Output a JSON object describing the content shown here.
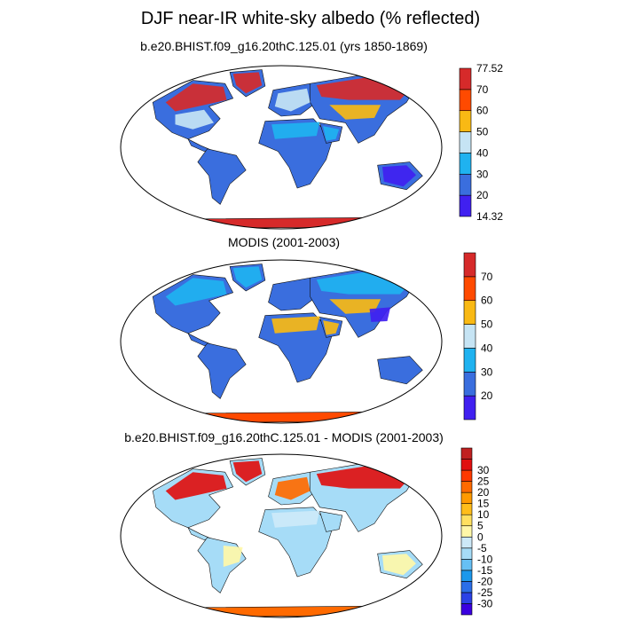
{
  "title": "DJF near-IR white-sky albedo (% reflected)",
  "panels": [
    {
      "subtitle": "b.e20.BHIST.f09_g16.20thC.125.01 (yrs 1850-1869)",
      "colorbar": {
        "colors": [
          "#4020f0",
          "#3a6ede",
          "#1fb2f0",
          "#c6e4f4",
          "#f9b914",
          "#ff4a00",
          "#d62a2a"
        ],
        "labels": [
          "14.32",
          "20",
          "30",
          "40",
          "50",
          "60",
          "70",
          "77.52"
        ],
        "label_mode": "boundaries_with_ends"
      },
      "scene": {
        "continent_fill": "#3a6ede",
        "antarctica": "#d62a2a",
        "patches": [
          {
            "region": "north-america-north",
            "color": "#d62a2a"
          },
          {
            "region": "north-america-mid",
            "color": "#c6e4f4"
          },
          {
            "region": "greenland",
            "color": "#d62a2a"
          },
          {
            "region": "europe",
            "color": "#c6e4f4"
          },
          {
            "region": "asia-north",
            "color": "#d62a2a"
          },
          {
            "region": "asia-mid",
            "color": "#f9b914"
          },
          {
            "region": "sahara",
            "color": "#1fb2f0"
          },
          {
            "region": "arabia",
            "color": "#1fb2f0"
          },
          {
            "region": "australia",
            "color": "#4020f0"
          }
        ]
      }
    },
    {
      "subtitle": "MODIS (2001-2003)",
      "colorbar": {
        "colors": [
          "#4020f0",
          "#3a6ede",
          "#1fb2f0",
          "#c6e4f4",
          "#f9b914",
          "#ff4a00",
          "#d62a2a"
        ],
        "labels": [
          "20",
          "30",
          "40",
          "50",
          "60",
          "70"
        ],
        "label_mode": "interior"
      },
      "scene": {
        "continent_fill": "#3a6ede",
        "antarctica": "#ff4a00",
        "patches": [
          {
            "region": "north-america-north",
            "color": "#1fb2f0"
          },
          {
            "region": "greenland",
            "color": "#1fb2f0"
          },
          {
            "region": "asia-north",
            "color": "#1fb2f0"
          },
          {
            "region": "sahara",
            "color": "#f9b914"
          },
          {
            "region": "arabia",
            "color": "#f9b914"
          },
          {
            "region": "asia-mid",
            "color": "#f9b914"
          },
          {
            "region": "china-east",
            "color": "#4020f0"
          }
        ]
      }
    },
    {
      "subtitle": "b.e20.BHIST.f09_g16.20thC.125.01 - MODIS (2001-2003)",
      "colorbar": {
        "colors": [
          "#3a00e0",
          "#2b42e6",
          "#2b6ee8",
          "#1c98ec",
          "#66c0f4",
          "#a6dcf7",
          "#cde9f8",
          "#fff7a8",
          "#ffe060",
          "#ffbd1a",
          "#ff9a00",
          "#ff6a00",
          "#ff3a00",
          "#e01010",
          "#c02020"
        ],
        "labels": [
          "-30",
          "-25",
          "-20",
          "-15",
          "-10",
          "-5",
          "0",
          "5",
          "10",
          "15",
          "20",
          "25",
          "30"
        ],
        "label_mode": "interior"
      },
      "scene": {
        "continent_fill": "#a6dcf7",
        "antarctica": "#ff6a00",
        "patches": [
          {
            "region": "north-america-north",
            "color": "#e01010"
          },
          {
            "region": "greenland",
            "color": "#e01010"
          },
          {
            "region": "asia-north",
            "color": "#e01010"
          },
          {
            "region": "europe",
            "color": "#ff6a00"
          },
          {
            "region": "australia",
            "color": "#fff7a8"
          },
          {
            "region": "south-america-east",
            "color": "#fff7a8"
          },
          {
            "region": "sahara",
            "color": "#cde9f8"
          }
        ]
      }
    }
  ]
}
